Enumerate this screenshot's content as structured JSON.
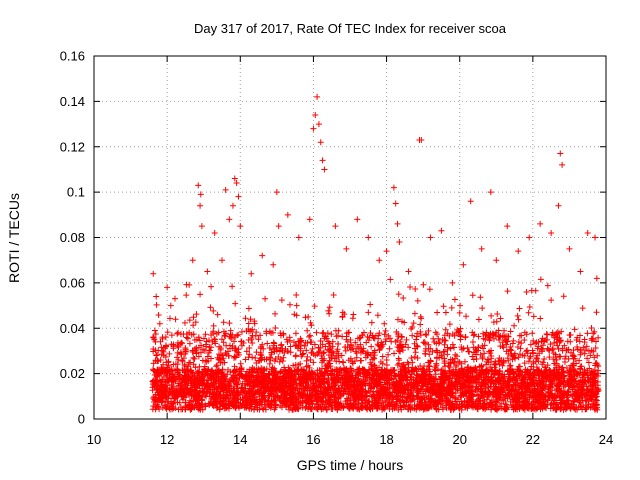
{
  "chart_data": {
    "type": "scatter",
    "title": "Day 317 of 2017, Rate Of TEC Index for receiver scoa",
    "xlabel": "GPS time / hours",
    "ylabel": "ROTI / TECUs",
    "xlim": [
      10,
      24
    ],
    "ylim": [
      0,
      0.16
    ],
    "xticks": [
      "10",
      "12",
      "14",
      "16",
      "18",
      "20",
      "22",
      "24"
    ],
    "yticks": [
      "0",
      "0.02",
      "0.04",
      "0.06",
      "0.08",
      "0.1",
      "0.12",
      "0.14",
      "0.16"
    ],
    "grid": true,
    "marker": "+",
    "color": "#ff0000",
    "series": [
      {
        "x": [
          11.62,
          11.65,
          11.7,
          11.8,
          12.0,
          12.1,
          12.3,
          12.5,
          12.7,
          12.85,
          12.9,
          12.92,
          12.95,
          13.1,
          13.3,
          13.5,
          13.6,
          13.7,
          13.8,
          13.85,
          13.9,
          13.95,
          14.0,
          14.3,
          14.6,
          14.9,
          15.0,
          15.05,
          15.3,
          15.6,
          15.9,
          16.0,
          16.05,
          16.1,
          16.15,
          16.2,
          16.25,
          16.3,
          16.6,
          16.9,
          17.2,
          17.5,
          17.8,
          18.0,
          18.2,
          18.25,
          18.3,
          18.35,
          18.6,
          18.9,
          18.95,
          19.2,
          19.5,
          19.8,
          20.1,
          20.3,
          20.6,
          20.85,
          21.0,
          21.3,
          21.6,
          21.9,
          22.2,
          22.5,
          22.7,
          22.75,
          22.8,
          23.0,
          23.3,
          23.5,
          23.7,
          23.75
        ],
        "y": [
          0.064,
          0.035,
          0.054,
          0.042,
          0.058,
          0.05,
          0.038,
          0.03,
          0.07,
          0.103,
          0.094,
          0.099,
          0.085,
          0.065,
          0.082,
          0.07,
          0.101,
          0.088,
          0.094,
          0.106,
          0.104,
          0.098,
          0.085,
          0.064,
          0.072,
          0.068,
          0.1,
          0.085,
          0.09,
          0.08,
          0.088,
          0.128,
          0.134,
          0.142,
          0.13,
          0.122,
          0.114,
          0.11,
          0.085,
          0.075,
          0.088,
          0.08,
          0.07,
          0.074,
          0.102,
          0.095,
          0.086,
          0.078,
          0.065,
          0.123,
          0.123,
          0.08,
          0.083,
          0.06,
          0.068,
          0.096,
          0.075,
          0.1,
          0.07,
          0.085,
          0.074,
          0.08,
          0.086,
          0.082,
          0.094,
          0.117,
          0.112,
          0.075,
          0.065,
          0.082,
          0.08,
          0.062
        ]
      }
    ]
  }
}
